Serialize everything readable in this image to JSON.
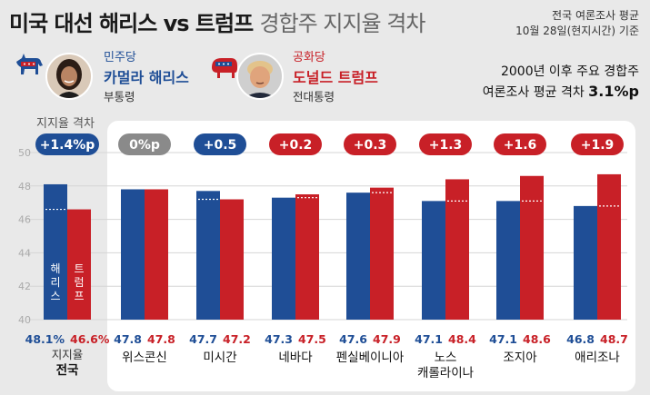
{
  "header": {
    "title_main": "미국 대선 해리스 vs 트럼프",
    "title_sub": "경합주 지지율 격차",
    "source_line1": "전국 여론조사 평균",
    "source_line2": "10월 28일(현지시간) 기준",
    "avg_note_line1": "2000년 이후 주요 경합주",
    "avg_note_line2_prefix": "여론조사 평균 격차 ",
    "avg_note_value": "3.1%p"
  },
  "candidates": {
    "harris": {
      "party": "민주당",
      "name": "카멀라 해리스",
      "role": "부통령",
      "color": "#1f4e96",
      "photo_icon": "harris-photo-icon",
      "party_icon": "donkey-icon"
    },
    "trump": {
      "party": "공화당",
      "name": "도널드 트럼프",
      "role": "전대통령",
      "color": "#c82027",
      "photo_icon": "trump-photo-icon",
      "party_icon": "elephant-icon"
    }
  },
  "national_gap_label": "지지율 격차",
  "chart_data": {
    "type": "bar",
    "ylim": [
      40,
      50
    ],
    "yticks": [
      40,
      42,
      44,
      46,
      48,
      50
    ],
    "categories": [
      "전국",
      "위스콘신",
      "미시간",
      "네바다",
      "펜실베이니아",
      "노스\n캐롤라이나",
      "조지아",
      "애리조나"
    ],
    "category_labels": [
      "전국",
      "위스콘신",
      "미시간",
      "네바다",
      "펜실베이니아",
      "노스",
      "조지아",
      "애리조나"
    ],
    "category_label2": {
      "5": "캐롤라이나"
    },
    "national_value_caption": "지지율",
    "series": [
      {
        "name": "해리스",
        "color": "#1f4e96",
        "values": [
          48.1,
          47.8,
          47.7,
          47.3,
          47.6,
          47.1,
          47.1,
          46.8
        ],
        "value_labels": [
          "48.1%",
          "47.8",
          "47.7",
          "47.3",
          "47.6",
          "47.1",
          "47.1",
          "46.8"
        ]
      },
      {
        "name": "트럼프",
        "color": "#c82027",
        "values": [
          46.6,
          47.8,
          47.2,
          47.5,
          47.9,
          48.4,
          48.6,
          48.7
        ],
        "value_labels": [
          "46.6%",
          "47.8",
          "47.2",
          "47.5",
          "47.9",
          "48.4",
          "48.6",
          "48.7"
        ]
      }
    ],
    "gaps": [
      {
        "label": "+1.4%p",
        "leader": "blue"
      },
      {
        "label": "0%p",
        "leader": "tie"
      },
      {
        "label": "+0.5",
        "leader": "blue"
      },
      {
        "label": "+0.2",
        "leader": "red"
      },
      {
        "label": "+0.3",
        "leader": "red"
      },
      {
        "label": "+1.3",
        "leader": "red"
      },
      {
        "label": "+1.6",
        "leader": "red"
      },
      {
        "label": "+1.9",
        "leader": "red"
      }
    ],
    "inbar_labels": [
      "해리스",
      "트럼프"
    ]
  }
}
